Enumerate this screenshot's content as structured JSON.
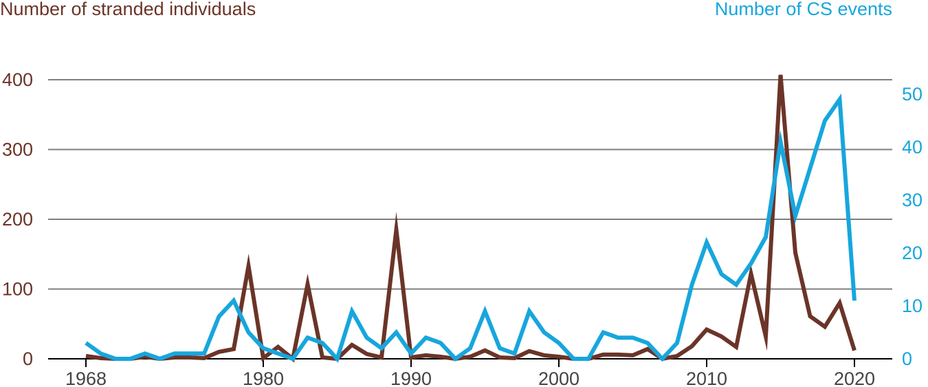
{
  "chart_data": {
    "type": "line",
    "title": "",
    "ylabel_left": "Number of stranded individuals",
    "ylabel_right": "Number of CS events",
    "xlim": [
      1968,
      2020
    ],
    "ylim_left": [
      0,
      400
    ],
    "ylim_right": [
      0,
      50
    ],
    "x_ticks": [
      1968,
      1980,
      1990,
      2000,
      2010,
      2020
    ],
    "y_ticks_left": [
      0,
      100,
      200,
      300,
      400
    ],
    "y_ticks_right": [
      0,
      10,
      20,
      30,
      40,
      50
    ],
    "grid": "horizontal",
    "colors": {
      "stranded": "#6b3428",
      "cs_events": "#17a6dd",
      "grid": "#7f7f7f",
      "axis": "#000000"
    },
    "series": [
      {
        "name": "Number of stranded individuals",
        "axis": "left",
        "color": "#6b3428",
        "x": [
          1968,
          1969,
          1970,
          1971,
          1972,
          1973,
          1974,
          1975,
          1976,
          1977,
          1978,
          1979,
          1980,
          1981,
          1982,
          1983,
          1984,
          1985,
          1986,
          1987,
          1988,
          1989,
          1990,
          1991,
          1992,
          1993,
          1994,
          1995,
          1996,
          1997,
          1998,
          1999,
          2000,
          2001,
          2002,
          2003,
          2004,
          2005,
          2006,
          2007,
          2008,
          2009,
          2010,
          2011,
          2012,
          2013,
          2014,
          2015,
          2016,
          2017,
          2018,
          2019,
          2020
        ],
        "values": [
          4,
          1,
          0,
          0,
          3,
          0,
          2,
          2,
          1,
          10,
          14,
          133,
          1,
          17,
          0,
          107,
          2,
          0,
          20,
          7,
          2,
          185,
          2,
          5,
          3,
          0,
          3,
          12,
          2,
          1,
          11,
          5,
          3,
          0,
          0,
          6,
          6,
          5,
          14,
          0,
          4,
          18,
          42,
          32,
          17,
          122,
          32,
          407,
          152,
          61,
          46,
          80,
          12
        ]
      },
      {
        "name": "Number of CS events",
        "axis": "right",
        "color": "#17a6dd",
        "x": [
          1968,
          1969,
          1970,
          1971,
          1972,
          1973,
          1974,
          1975,
          1976,
          1977,
          1978,
          1979,
          1980,
          1981,
          1982,
          1983,
          1984,
          1985,
          1986,
          1987,
          1988,
          1989,
          1990,
          1991,
          1992,
          1993,
          1994,
          1995,
          1996,
          1997,
          1998,
          1999,
          2000,
          2001,
          2002,
          2003,
          2004,
          2005,
          2006,
          2007,
          2008,
          2009,
          2010,
          2011,
          2012,
          2013,
          2014,
          2015,
          2016,
          2017,
          2018,
          2019,
          2020
        ],
        "values": [
          3,
          1,
          0,
          0,
          1,
          0,
          1,
          1,
          1,
          8,
          11,
          5,
          2,
          1,
          0,
          4,
          3,
          0,
          9,
          4,
          2,
          5,
          1,
          4,
          3,
          0,
          2,
          9,
          2,
          1,
          9,
          5,
          3,
          0,
          0,
          5,
          4,
          4,
          3,
          0,
          3,
          14,
          22,
          16,
          14,
          18,
          23,
          41,
          27,
          36,
          45,
          49,
          11
        ]
      }
    ]
  }
}
